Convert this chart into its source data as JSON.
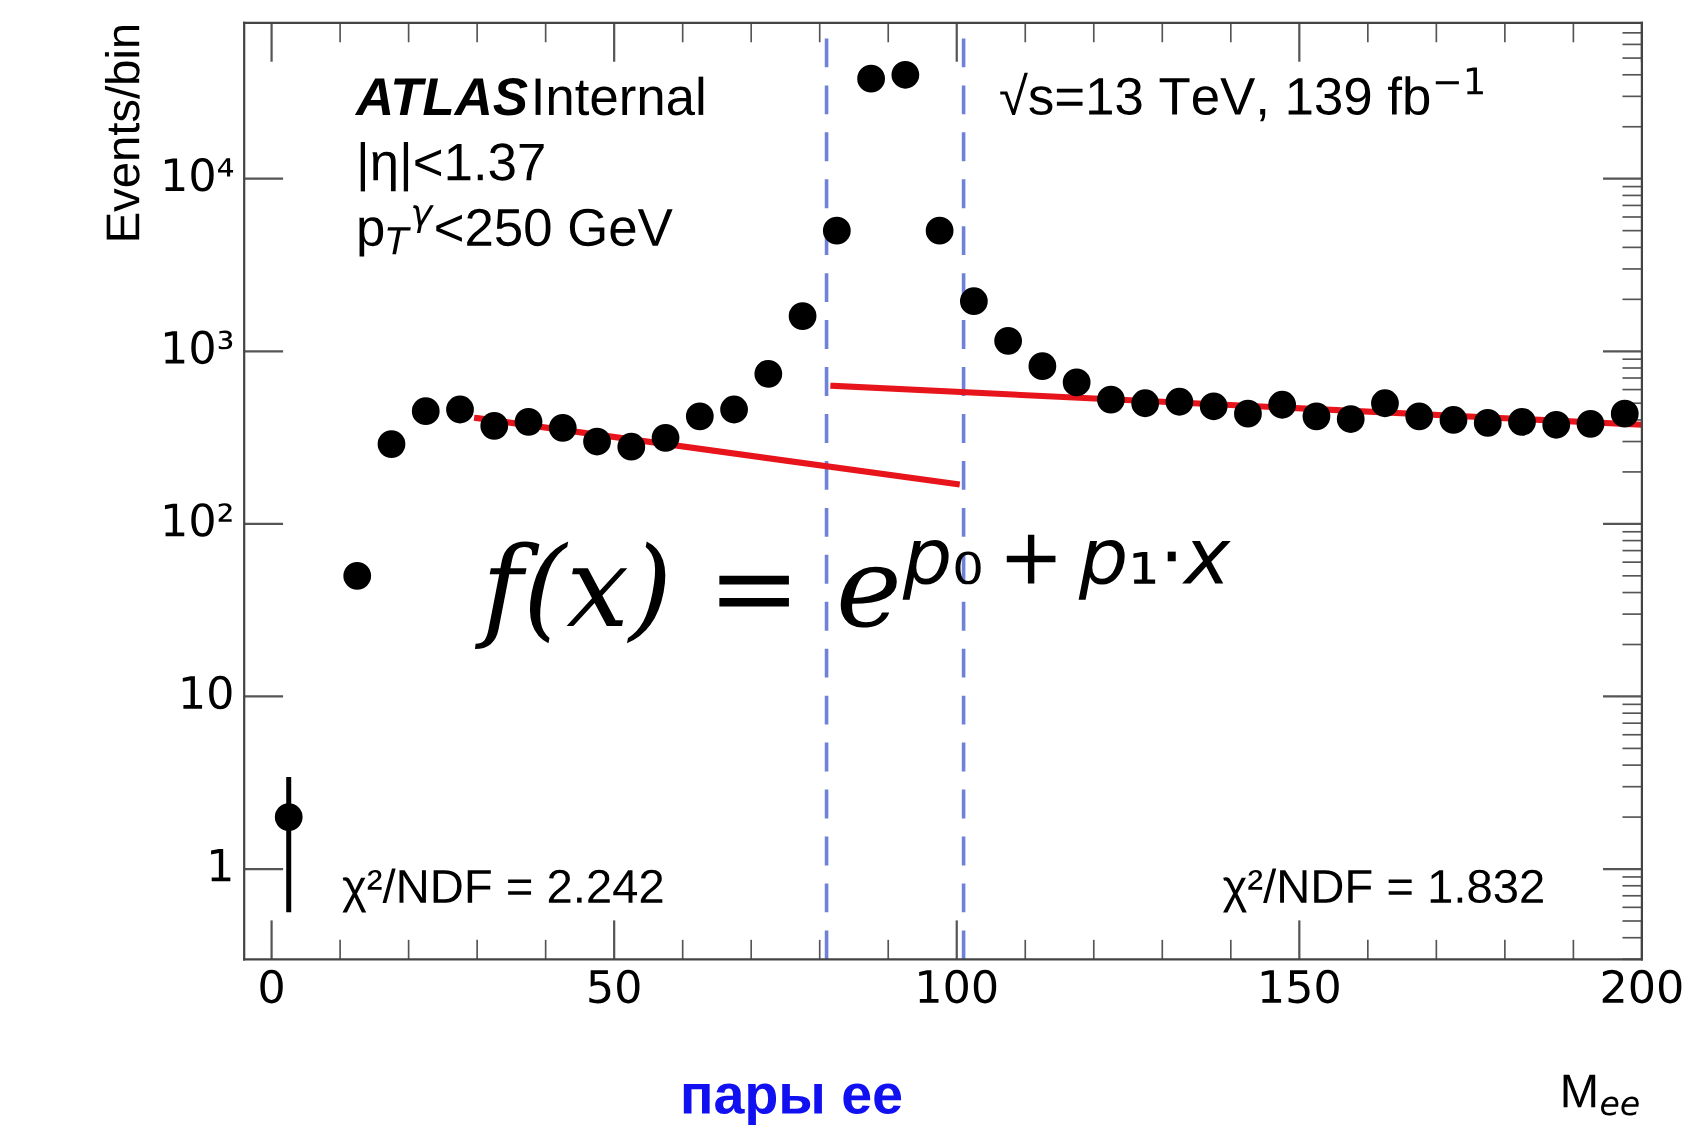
{
  "chart_data": {
    "type": "scatter",
    "xlabel": "M$_{ee}$",
    "ylabel": "Events/bin",
    "log": "y",
    "xlim": [
      -4,
      200
    ],
    "ylim": [
      0.3,
      80000
    ],
    "xticks": [
      0,
      50,
      100,
      150,
      200
    ],
    "yticks": [
      1,
      10,
      {
        "value": 100,
        "label": "10²"
      },
      {
        "value": 1000,
        "label": "10³"
      },
      {
        "value": 10000,
        "label": "10⁴"
      }
    ],
    "grid": false,
    "legend": false,
    "series": [
      {
        "marker": "circle",
        "color": "#000000",
        "x": [
          2.5,
          12.5,
          17.5,
          22.5,
          27.5,
          32.5,
          37.5,
          42.5,
          47.5,
          52.5,
          57.5,
          62.5,
          67.5,
          72.5,
          77.5,
          82.5,
          87.5,
          92.5,
          97.5,
          102.5,
          107.5,
          112.5,
          117.5,
          122.5,
          127.5,
          132.5,
          137.5,
          142.5,
          147.5,
          152.5,
          157.5,
          162.5,
          167.5,
          172.5,
          177.5,
          182.5,
          187.5,
          192.5,
          197.5
        ],
        "values": [
          2,
          50,
          290,
          450,
          460,
          370,
          390,
          360,
          300,
          280,
          315,
          420,
          460,
          740,
          1600,
          5000,
          38000,
          40000,
          5000,
          1950,
          1150,
          820,
          660,
          525,
          500,
          510,
          480,
          435,
          490,
          420,
          405,
          500,
          420,
          400,
          385,
          390,
          375,
          380,
          435
        ],
        "errors": [
          [
            0.58,
            3.3
          ],
          null,
          null,
          null,
          null,
          null,
          null,
          null,
          null,
          null,
          null,
          null,
          null,
          null,
          null,
          null,
          null,
          null,
          null,
          null,
          null,
          null,
          null,
          null,
          null,
          null,
          null,
          null,
          null,
          null,
          null,
          null,
          null,
          null,
          null,
          null,
          null,
          null,
          null
        ]
      },
      {
        "type": "line",
        "color": "#e8141c",
        "x": [
          30,
          100
        ],
        "values": [
          410,
          170
        ],
        "marker": "none"
      },
      {
        "type": "line",
        "color": "#e8141c",
        "x": [
          82,
          200
        ],
        "values": [
          630,
          375
        ],
        "marker": "none"
      }
    ],
    "ref_lines": [
      {
        "axis": "x",
        "value": 81,
        "color": "#6f82d8",
        "line_style": "dashed"
      },
      {
        "axis": "x",
        "value": 101,
        "color": "#6f82d8",
        "line_style": "dashed"
      }
    ],
    "annotations": [
      "ATLAS",
      "Internal",
      "|η|<1.37",
      "p$_{T}$$^{γ}$<250 GeV",
      "√s=13 TeV, 139 fb$^{−1}$",
      "f(x) = e$^{p₀+p₁·x}$",
      "χ²/NDF = 2.242",
      "χ²/NDF = 1.832",
      "пары ee"
    ]
  }
}
